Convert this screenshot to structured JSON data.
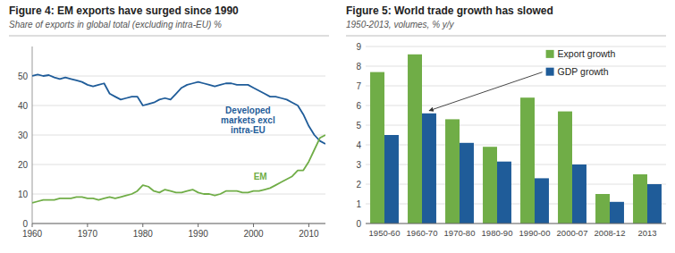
{
  "chart_data": [
    {
      "type": "line",
      "title": "Figure 4: EM exports have surged since 1990",
      "subtitle": "Share of exports in global total (excluding intra-EU) %",
      "x": [
        1960,
        1961,
        1962,
        1963,
        1964,
        1965,
        1966,
        1967,
        1968,
        1969,
        1970,
        1971,
        1972,
        1973,
        1974,
        1975,
        1976,
        1977,
        1978,
        1979,
        1980,
        1981,
        1982,
        1983,
        1984,
        1985,
        1986,
        1987,
        1988,
        1989,
        1990,
        1991,
        1992,
        1993,
        1994,
        1995,
        1996,
        1997,
        1998,
        1999,
        2000,
        2001,
        2002,
        2003,
        2004,
        2005,
        2006,
        2007,
        2008,
        2009,
        2010,
        2011,
        2012,
        2013
      ],
      "series": [
        {
          "name": "Developed\nmarkets excl\nintra-EU",
          "color": "#1F5C99",
          "values": [
            50,
            50.5,
            50,
            50.3,
            49.5,
            49,
            49.5,
            49,
            48.5,
            48,
            47,
            46.5,
            47,
            47.5,
            44,
            43,
            42,
            42.5,
            43,
            43,
            40,
            40.5,
            41,
            42,
            42.5,
            42,
            44,
            46,
            47,
            47.5,
            48,
            47.5,
            47,
            46.5,
            47,
            47.5,
            47.5,
            47,
            47,
            47,
            46,
            45,
            44,
            43,
            43,
            42.5,
            42,
            41,
            40,
            37,
            33,
            30,
            28,
            27
          ]
        },
        {
          "name": "EM",
          "color": "#70AD47",
          "values": [
            7,
            7.5,
            8,
            8,
            8,
            8.5,
            8.5,
            8.5,
            9,
            9,
            8.5,
            8.5,
            8,
            8.5,
            9,
            8.5,
            9,
            9.5,
            10,
            11,
            13,
            12.5,
            11,
            10.5,
            11.5,
            11,
            10.5,
            10.5,
            11,
            11.5,
            10.5,
            10,
            10,
            9.5,
            10,
            11,
            11,
            11,
            10.5,
            10.5,
            11,
            11,
            11.5,
            12,
            13,
            14,
            15,
            16,
            18,
            18,
            21,
            25,
            29,
            30
          ]
        }
      ],
      "xlim": [
        1960,
        2013
      ],
      "xticks": [
        1960,
        1970,
        1980,
        1990,
        2000,
        2010
      ],
      "ylim": [
        0,
        60
      ],
      "yticks": [
        0,
        10,
        20,
        30,
        40,
        50
      ],
      "grid": true
    },
    {
      "type": "bar",
      "title": "Figure 5: World trade growth has slowed",
      "subtitle": "1950-2013, volumes, % y/y",
      "categories": [
        "1950-60",
        "1960-70",
        "1970-80",
        "1980-90",
        "1990-00",
        "2000-07",
        "2008-12",
        "2013"
      ],
      "series": [
        {
          "name": "Export growth",
          "color": "#70AD47",
          "values": [
            7.7,
            8.6,
            5.3,
            3.9,
            6.4,
            5.7,
            1.5,
            2.5
          ]
        },
        {
          "name": "GDP growth",
          "color": "#1F5C99",
          "values": [
            4.5,
            5.6,
            4.1,
            3.15,
            2.3,
            3.0,
            1.1,
            2.0
          ]
        }
      ],
      "ylim": [
        0,
        9
      ],
      "yticks": [
        0,
        1,
        2,
        3,
        4,
        5,
        6,
        7,
        8,
        9
      ],
      "grid": true
    }
  ]
}
